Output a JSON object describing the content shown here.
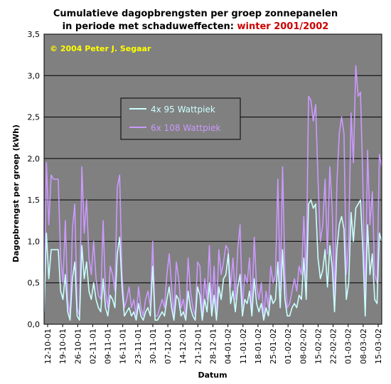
{
  "chart_data": {
    "type": "line",
    "title_line1": "Cumulatieve dagopbrengsten per groep zonnepanelen",
    "title_line2_prefix": "in periode met schaduweffecten: ",
    "title_line2_highlight": "winter 2001/2002",
    "copyright": "© 2004 Peter J. Segaar",
    "xlabel": "Datum",
    "ylabel": "Dagopbrengst per groep (kWh)",
    "ylim": [
      0,
      3.5
    ],
    "y_ticks": [
      "0,0",
      "0,5",
      "1,0",
      "1,5",
      "2,0",
      "2,5",
      "3,0",
      "3,5"
    ],
    "x_ticks": [
      "12-10-01",
      "19-10-01",
      "26-10-01",
      "02-11-01",
      "09-11-01",
      "16-11-01",
      "23-11-01",
      "30-11-01",
      "07-12-01",
      "14-12-01",
      "21-12-01",
      "28-12-01",
      "04-01-02",
      "11-01-02",
      "18-01-02",
      "25-01-02",
      "01-02-02",
      "08-02-02",
      "15-02-02",
      "22-02-02",
      "01-03-02",
      "08-03-02",
      "15-03-02"
    ],
    "grid": "horizontal",
    "legend_position": "upper-left",
    "colors": {
      "plot_bg": "#808080",
      "series1": "#ccffff",
      "series2": "#cc99ff",
      "title_highlight": "#cc0000",
      "copyright": "#ffff00"
    },
    "series": [
      {
        "name": "4x 95 Wattpiek",
        "color": "#ccffff",
        "values": [
          0.15,
          1.1,
          0.55,
          0.9,
          0.9,
          0.9,
          0.9,
          0.4,
          0.3,
          0.6,
          0.15,
          0.05,
          0.55,
          0.75,
          0.1,
          0.05,
          0.95,
          0.55,
          0.75,
          0.4,
          0.3,
          0.5,
          0.3,
          0.2,
          0.15,
          0.55,
          0.2,
          0.1,
          0.35,
          0.3,
          0.2,
          0.85,
          1.05,
          0.45,
          0.1,
          0.15,
          0.2,
          0.1,
          0.15,
          0.05,
          0.25,
          0.1,
          0.05,
          0.15,
          0.2,
          0.1,
          0.7,
          0.05,
          0.05,
          0.1,
          0.15,
          0.1,
          0.3,
          0.45,
          0.2,
          0.05,
          0.35,
          0.3,
          0.1,
          0.15,
          0.05,
          0.4,
          0.2,
          0.1,
          0.05,
          0.45,
          0.35,
          0.05,
          0.3,
          0.15,
          0.5,
          0.1,
          0.35,
          0.05,
          0.45,
          0.3,
          0.55,
          0.6,
          0.85,
          0.25,
          0.4,
          0.15,
          0.45,
          0.6,
          0.1,
          0.3,
          0.25,
          0.4,
          0.1,
          0.55,
          0.25,
          0.15,
          0.25,
          0.05,
          0.2,
          0.1,
          0.35,
          0.25,
          0.3,
          0.75,
          0.2,
          0.9,
          0.3,
          0.1,
          0.1,
          0.2,
          0.25,
          0.2,
          0.35,
          0.3,
          0.8,
          0.3,
          1.45,
          1.5,
          1.4,
          1.45,
          0.8,
          0.55,
          0.65,
          0.9,
          0.45,
          0.95,
          0.7,
          0.15,
          0.9,
          1.2,
          1.3,
          1.15,
          0.3,
          0.5,
          1.35,
          1.0,
          1.4,
          1.45,
          1.5,
          0.9,
          0.1,
          1.2,
          0.6,
          0.85,
          0.3,
          0.25,
          1.1,
          1.0
        ]
      },
      {
        "name": "6x 108 Wattpiek",
        "color": "#cc99ff",
        "values": [
          0.15,
          1.95,
          1.2,
          1.8,
          1.75,
          1.75,
          1.75,
          0.8,
          0.5,
          1.25,
          0.3,
          0.1,
          1.15,
          1.45,
          0.2,
          0.1,
          1.9,
          1.1,
          1.5,
          0.8,
          0.6,
          1.0,
          0.55,
          0.35,
          0.3,
          1.25,
          0.4,
          0.2,
          0.7,
          0.6,
          0.4,
          1.65,
          1.8,
          0.6,
          0.2,
          0.3,
          0.45,
          0.2,
          0.3,
          0.1,
          0.45,
          0.2,
          0.1,
          0.3,
          0.4,
          0.2,
          1.0,
          0.1,
          0.1,
          0.2,
          0.3,
          0.2,
          0.6,
          0.85,
          0.45,
          0.1,
          0.75,
          0.55,
          0.2,
          0.3,
          0.1,
          0.8,
          0.4,
          0.2,
          0.1,
          0.75,
          0.7,
          0.1,
          0.55,
          0.3,
          0.95,
          0.2,
          0.7,
          0.1,
          0.9,
          0.6,
          0.75,
          0.95,
          0.9,
          0.45,
          0.8,
          0.3,
          0.9,
          1.2,
          0.2,
          0.6,
          0.5,
          0.8,
          0.2,
          1.05,
          0.45,
          0.3,
          0.5,
          0.1,
          0.4,
          0.2,
          0.7,
          0.5,
          0.6,
          1.75,
          0.4,
          1.9,
          0.6,
          0.2,
          0.25,
          0.4,
          0.55,
          0.4,
          0.7,
          0.6,
          1.3,
          0.55,
          2.75,
          2.7,
          2.45,
          2.65,
          1.75,
          1.0,
          1.2,
          1.75,
          0.85,
          1.9,
          1.4,
          0.3,
          1.7,
          2.3,
          2.5,
          2.3,
          0.6,
          1.0,
          2.55,
          1.95,
          3.12,
          2.75,
          2.8,
          1.7,
          0.25,
          2.1,
          1.2,
          1.6,
          0.6,
          0.5,
          2.05,
          1.9
        ]
      }
    ]
  }
}
